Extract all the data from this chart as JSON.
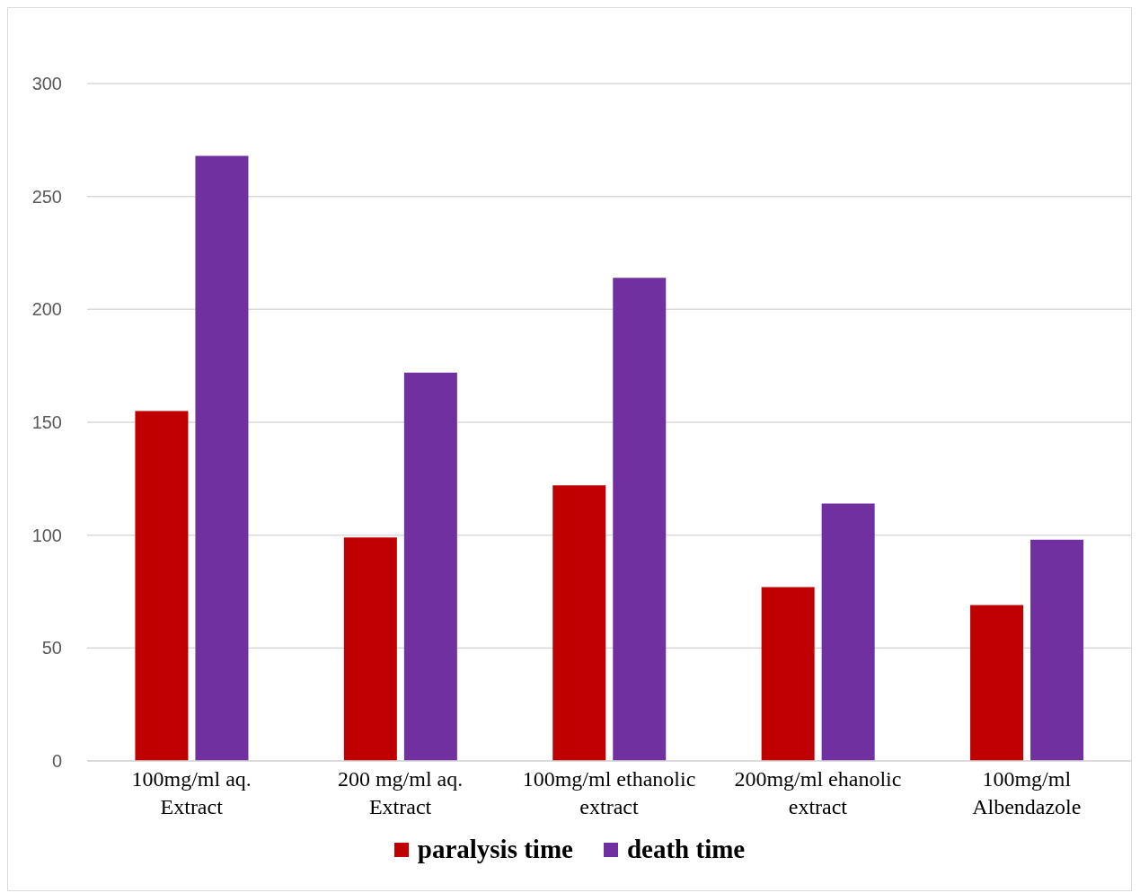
{
  "chart_data": {
    "type": "bar",
    "categories": [
      "100mg/ml aq. Extract",
      "200 mg/ml aq. Extract",
      "100mg/ml ethanolic extract",
      "200mg/ml ehanolic extract",
      "100mg/ml Albendazole"
    ],
    "series": [
      {
        "name": "paralysis time",
        "color": "#c00000",
        "values": [
          155,
          99,
          122,
          77,
          69
        ]
      },
      {
        "name": "death time",
        "color": "#7030a0",
        "values": [
          268,
          172,
          214,
          114,
          98
        ]
      }
    ],
    "ylim": [
      0,
      300
    ],
    "yticks": [
      0,
      50,
      100,
      150,
      200,
      250,
      300
    ],
    "grid": "y",
    "legend": "bottom"
  }
}
